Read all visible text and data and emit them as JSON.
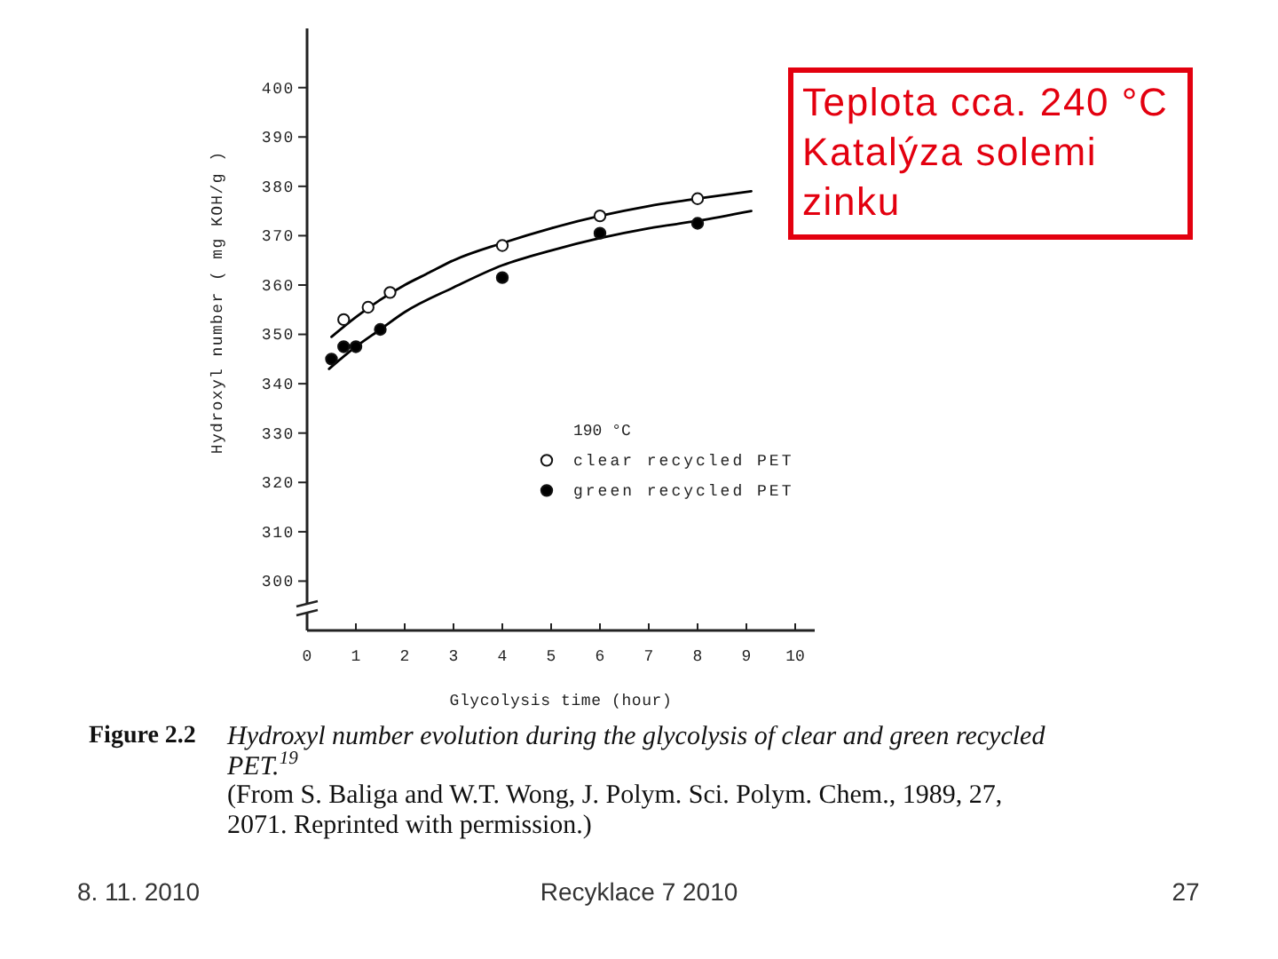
{
  "chart_data": {
    "type": "scatter",
    "title": "Figure 2.2",
    "subtitle": "Hydroxyl number evolution during the glycolysis of clear and green recycled PET.$^{19}$",
    "xlabel": "Glycolysis time (hour)",
    "ylabel": "Hydroxyl number ( mg KOH/g )",
    "legend_title": "190 °C",
    "xlim": [
      0,
      10.4
    ],
    "ylim": [
      290,
      412
    ],
    "xticks": [
      0,
      1,
      2,
      3,
      4,
      5,
      6,
      7,
      8,
      9,
      10
    ],
    "yticks": [
      300,
      310,
      320,
      330,
      340,
      350,
      360,
      370,
      380,
      390,
      400
    ],
    "legend": "right",
    "marker": "circle",
    "series": [
      {
        "type": "line",
        "marker": "none",
        "color": "#000000",
        "x": [
          0.5,
          1,
          1.5,
          2,
          2.5,
          3,
          4,
          5,
          6,
          7,
          8,
          9.1
        ],
        "values": [
          349.5,
          353.5,
          357,
          360,
          362.5,
          365,
          368.5,
          371.5,
          374,
          376,
          377.5,
          379
        ]
      },
      {
        "type": "line",
        "marker": "none",
        "color": "#000000",
        "x": [
          0.45,
          1,
          1.5,
          2,
          3,
          4,
          5,
          6,
          7,
          8,
          9.1
        ],
        "values": [
          343,
          347.5,
          351,
          354.5,
          359.5,
          364,
          367,
          369.5,
          371.5,
          373,
          375
        ]
      },
      {
        "name": "clear recycled PET",
        "color": "#ffffff",
        "x": [
          0.75,
          1.25,
          1.7,
          4,
          6,
          8
        ],
        "values": [
          353,
          355.5,
          358.5,
          368,
          374,
          377.5
        ]
      },
      {
        "name": "green recycled PET",
        "color": "#000000",
        "x": [
          0.5,
          0.75,
          1,
          1.5,
          4,
          6,
          8
        ],
        "values": [
          345,
          347.5,
          347.5,
          351,
          361.5,
          370.5,
          372.5
        ]
      }
    ],
    "annotations": [
      "(From S. Baliga and W.T. Wong, J. Polym. Sci. Polym. Chem., 1989, 27, 2071. Reprinted with permission.)",
      "Teplota cca. 240 °C\nKatalýza solemi\nzinku",
      "8. 11. 2010",
      "Recyklace 7 2010",
      "27"
    ]
  }
}
